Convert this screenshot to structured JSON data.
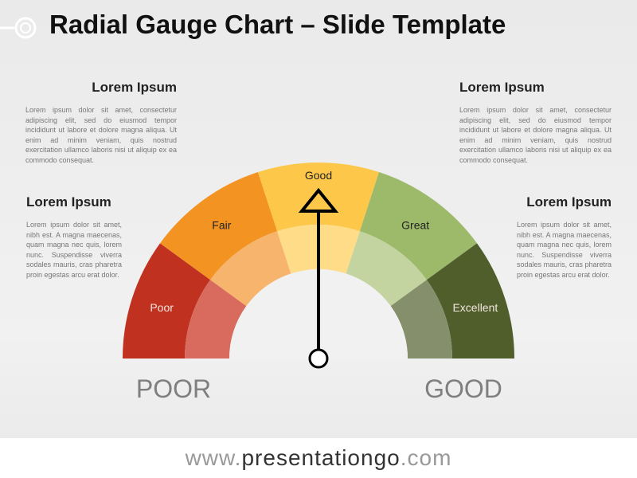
{
  "title": "Radial Gauge Chart – Slide Template",
  "blocks": [
    {
      "heading": "Lorem Ipsum",
      "text": "Lorem ipsum dolor sit amet, consectetur adipiscing elit, sed do eiusmod tempor incididunt ut labore et dolore magna aliqua. Ut enim ad minim veniam, quis nostrud exercitation ullamco laboris nisi ut aliquip ex ea commodo consequat."
    },
    {
      "heading": "Lorem Ipsum",
      "text": "Lorem ipsum dolor sit amet, consectetur adipiscing elit, sed do eiusmod tempor incididunt ut labore et dolore magna aliqua. Ut enim ad minim veniam, quis nostrud exercitation ullamco laboris nisi ut aliquip ex ea commodo consequat."
    },
    {
      "heading": "Lorem Ipsum",
      "text": "Lorem ipsum dolor sit amet, nibh est. A magna maecenas, quam magna nec quis, lorem nunc. Suspendisse viverra sodales mauris, cras pharetra proin egestas arcu erat dolor."
    },
    {
      "heading": "Lorem Ipsum",
      "text": "Lorem ipsum dolor sit amet, nibh est. A magna maecenas, quam magna nec quis, lorem nunc. Suspendisse viverra sodales mauris, cras pharetra proin egestas arcu erat dolor."
    }
  ],
  "gauge": {
    "segments": [
      {
        "label": "Poor",
        "color": "#c0321f",
        "inner_color": "#d86a5e"
      },
      {
        "label": "Fair",
        "color": "#f39322",
        "inner_color": "#f7b46c"
      },
      {
        "label": "Good",
        "color": "#fdc84a",
        "inner_color": "#fedc88"
      },
      {
        "label": "Great",
        "color": "#9db96a",
        "inner_color": "#c3d4a0"
      },
      {
        "label": "Excellent",
        "color": "#4f5e2b",
        "inner_color": "#868f6b"
      }
    ],
    "left_label": "POOR",
    "right_label": "GOOD"
  },
  "footer": {
    "prefix": "www.",
    "name": "presentationgo",
    "suffix": ".com"
  }
}
